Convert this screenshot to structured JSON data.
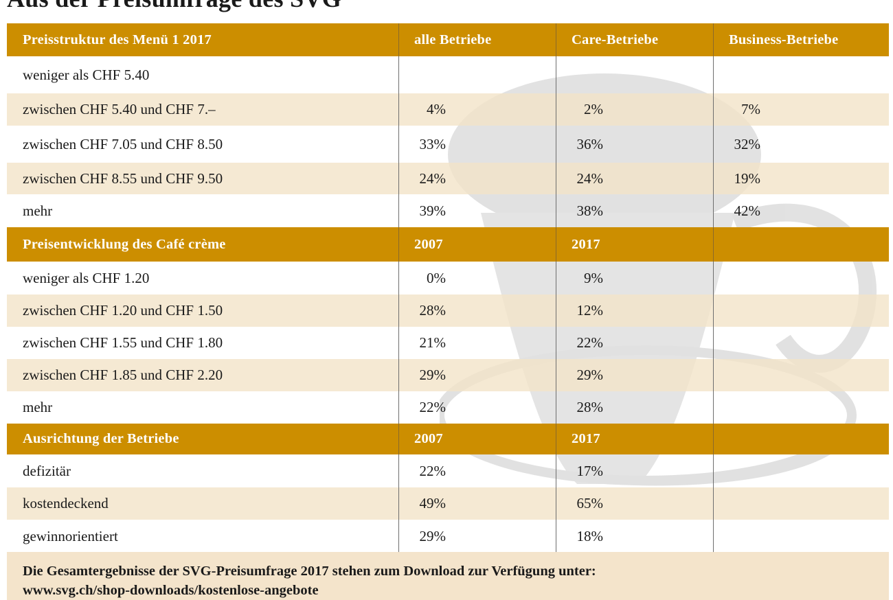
{
  "page": {
    "title": "Aus der Preisumfrage des SVG"
  },
  "colors": {
    "header_bg": "#cc8e00",
    "shade_bg": "#f3e3c8",
    "header_text": "#ffffff"
  },
  "sections": [
    {
      "header": [
        "Preisstruktur des Menü 1 2017",
        "alle Betriebe",
        "Care-Betriebe",
        "Business-Betriebe"
      ],
      "rows": [
        {
          "label": "weniger als CHF 5.40",
          "values": [
            "",
            "",
            ""
          ]
        },
        {
          "label": "zwischen CHF 5.40 und CHF 7.–",
          "values": [
            "4%",
            "2%",
            "7%"
          ]
        },
        {
          "label": "zwischen CHF 7.05 und CHF 8.50",
          "values": [
            "33%",
            "36%",
            "32%"
          ]
        },
        {
          "label": "zwischen CHF 8.55 und CHF 9.50",
          "values": [
            "24%",
            "24%",
            "19%"
          ]
        },
        {
          "label": "mehr",
          "values": [
            "39%",
            "38%",
            "42%"
          ]
        }
      ]
    },
    {
      "header": [
        "Preisentwicklung des Café crème",
        "2007",
        "2017",
        ""
      ],
      "rows": [
        {
          "label": "weniger als CHF 1.20",
          "values": [
            "0%",
            "9%",
            ""
          ]
        },
        {
          "label": "zwischen CHF 1.20 und CHF 1.50",
          "values": [
            "28%",
            "12%",
            ""
          ]
        },
        {
          "label": "zwischen CHF 1.55 und CHF 1.80",
          "values": [
            "21%",
            "22%",
            ""
          ]
        },
        {
          "label": "zwischen CHF 1.85 und CHF 2.20",
          "values": [
            "29%",
            "29%",
            ""
          ]
        },
        {
          "label": "mehr",
          "values": [
            "22%",
            "28%",
            ""
          ]
        }
      ]
    },
    {
      "header": [
        "Ausrichtung der Betriebe",
        "2007",
        "2017",
        ""
      ],
      "rows": [
        {
          "label": "defizitär",
          "values": [
            "22%",
            "17%",
            ""
          ]
        },
        {
          "label": "kostendeckend",
          "values": [
            "49%",
            "65%",
            ""
          ]
        },
        {
          "label": "gewinnorientiert",
          "values": [
            "29%",
            "18%",
            ""
          ]
        }
      ]
    }
  ],
  "footer": {
    "line1": "Die Gesamtergebnisse der SVG-Preisumfrage 2017 stehen zum Download zur Verfügung unter:",
    "line2": "www.svg.ch/shop-downloads/kostenlose-angebote"
  }
}
